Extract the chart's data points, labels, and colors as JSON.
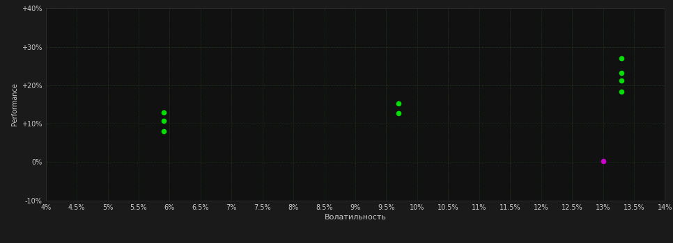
{
  "background_color": "#1a1a1a",
  "plot_bg_color": "#111111",
  "grid_color": "#2a4a2a",
  "grid_style": ":",
  "xlabel": "Волатильность",
  "ylabel": "Performance",
  "xlim": [
    0.04,
    0.14
  ],
  "ylim": [
    -0.1,
    0.4
  ],
  "xticks": [
    0.04,
    0.045,
    0.05,
    0.055,
    0.06,
    0.065,
    0.07,
    0.075,
    0.08,
    0.085,
    0.09,
    0.095,
    0.1,
    0.105,
    0.11,
    0.115,
    0.12,
    0.125,
    0.13,
    0.135,
    0.14
  ],
  "xtick_labels": [
    "4%",
    "4.5%",
    "5%",
    "5.5%",
    "6%",
    "6.5%",
    "7%",
    "7.5%",
    "8%",
    "8.5%",
    "9%",
    "9.5%",
    "10%",
    "10.5%",
    "11%",
    "11.5%",
    "12%",
    "12.5%",
    "13%",
    "13.5%",
    "14%"
  ],
  "yticks": [
    -0.1,
    0.0,
    0.1,
    0.2,
    0.3,
    0.4
  ],
  "ytick_labels": [
    "-10%",
    "0%",
    "+10%",
    "+20%",
    "+30%",
    "+40%"
  ],
  "green_points": [
    [
      0.059,
      0.13
    ],
    [
      0.059,
      0.108
    ],
    [
      0.059,
      0.08
    ],
    [
      0.097,
      0.152
    ],
    [
      0.097,
      0.128
    ],
    [
      0.133,
      0.27
    ],
    [
      0.133,
      0.232
    ],
    [
      0.133,
      0.213
    ],
    [
      0.133,
      0.183
    ]
  ],
  "magenta_points": [
    [
      0.13,
      0.002
    ]
  ],
  "green_color": "#00dd00",
  "magenta_color": "#cc00cc",
  "point_size": 30,
  "tick_color": "#cccccc",
  "tick_fontsize": 7,
  "label_fontsize": 8,
  "label_color": "#cccccc",
  "ylabel_fontsize": 7,
  "ylabel_color": "#cccccc"
}
